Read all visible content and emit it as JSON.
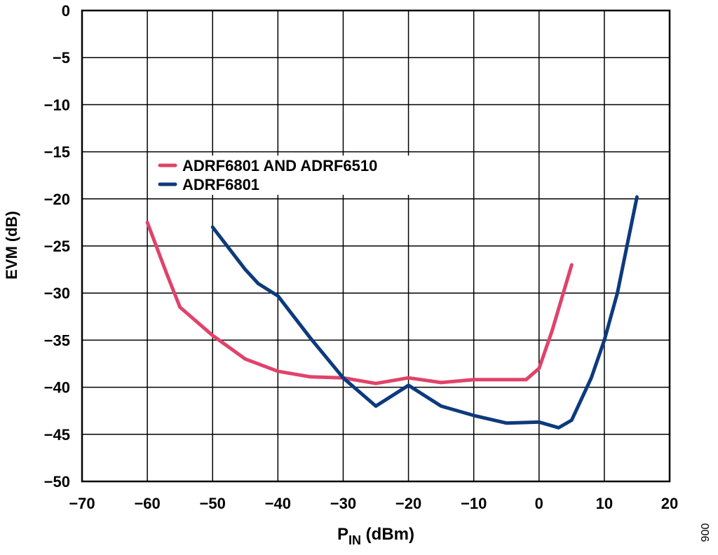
{
  "chart_data": {
    "type": "line",
    "y_label": "EVM (dB)",
    "x_label": [
      "P",
      "IN",
      " (dBm)"
    ],
    "xlim": [
      -70,
      20
    ],
    "xticks": [
      {
        "value": -70,
        "label": "−70"
      },
      {
        "value": -60,
        "label": "−60"
      },
      {
        "value": -50,
        "label": "−50"
      },
      {
        "value": -40,
        "label": "−40"
      },
      {
        "value": -30,
        "label": "−30"
      },
      {
        "value": -20,
        "label": "−20"
      },
      {
        "value": -10,
        "label": "−10"
      },
      0,
      10,
      20
    ],
    "ylim": [
      -50,
      0
    ],
    "yticks": [
      0,
      {
        "value": -5,
        "label": "−5"
      },
      {
        "value": -10,
        "label": "−10"
      },
      {
        "value": -15,
        "label": "−15"
      },
      {
        "value": -20,
        "label": "−20"
      },
      {
        "value": -25,
        "label": "−25"
      },
      {
        "value": -30,
        "label": "−30"
      },
      {
        "value": -35,
        "label": "−35"
      },
      {
        "value": -40,
        "label": "−40"
      },
      {
        "value": -45,
        "label": "−45"
      },
      {
        "value": -50,
        "label": "−50"
      }
    ],
    "grid": true,
    "legend": "upper left",
    "series": [
      {
        "name": "ADRF6801 AND ADRF6510",
        "color": "#e0436a",
        "x": [
          -60,
          -57,
          -55,
          -50,
          -45,
          -40,
          -35,
          -30,
          -25,
          -20,
          -15,
          -10,
          -5,
          -2,
          0,
          2,
          5
        ],
        "values": [
          -22.5,
          -28,
          -31.5,
          -34.5,
          -37,
          -38.3,
          -38.9,
          -39,
          -39.6,
          -39,
          -39.5,
          -39.2,
          -39.2,
          -39.2,
          -38,
          -34,
          -27
        ]
      },
      {
        "name": "ADRF6801",
        "color": "#0d3a7d",
        "x": [
          -50,
          -45,
          -43,
          -40,
          -35,
          -30,
          -25,
          -20,
          -15,
          -10,
          -5,
          0,
          3,
          5,
          8,
          10,
          12,
          15
        ],
        "values": [
          -23,
          -27.5,
          -29,
          -30.3,
          -34.8,
          -39,
          -42,
          -39.8,
          -42,
          -43,
          -43.8,
          -43.7,
          -44.3,
          -43.5,
          -39,
          -35,
          -30,
          -19.8
        ]
      }
    ]
  },
  "figure_id": "006"
}
